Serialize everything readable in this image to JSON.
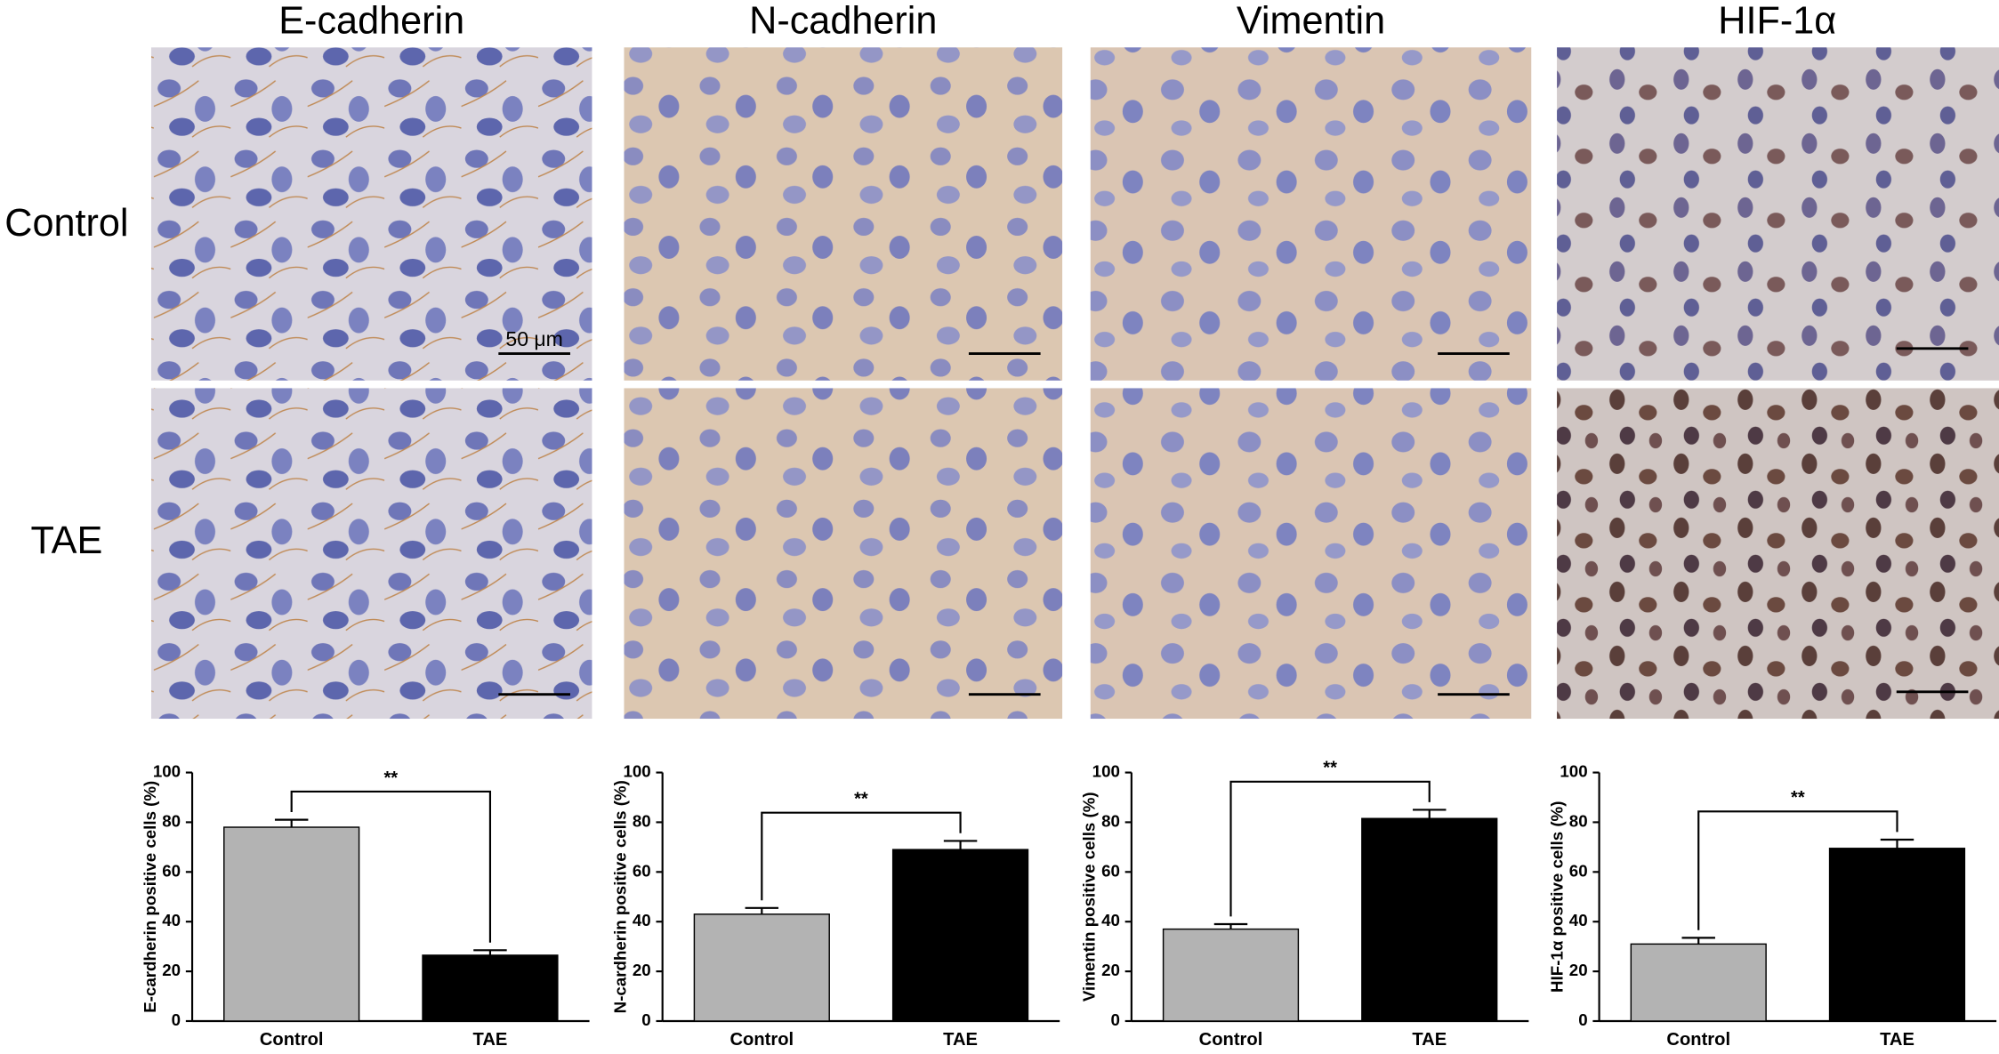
{
  "figure": {
    "columns": [
      "E-cadherin",
      "N-cadherin",
      "Vimentin",
      "HIF-1α"
    ],
    "rows": [
      "Control",
      "TAE"
    ],
    "scale_bar": "50 μm"
  },
  "chart_data": [
    {
      "type": "bar",
      "ylabel": "E-cardherin positive cells (%)",
      "categories": [
        "Control",
        "TAE"
      ],
      "values": [
        78,
        26.5
      ],
      "errors": [
        3,
        2
      ],
      "colors": [
        "#b3b3b3",
        "#000000"
      ],
      "ylim": [
        0,
        100
      ],
      "yticks": [
        0,
        20,
        40,
        60,
        80,
        100
      ],
      "annotation": "**"
    },
    {
      "type": "bar",
      "ylabel": "N-cardherin positive cells (%)",
      "categories": [
        "Control",
        "TAE"
      ],
      "values": [
        43,
        69
      ],
      "errors": [
        2.5,
        3.5
      ],
      "colors": [
        "#b3b3b3",
        "#000000"
      ],
      "ylim": [
        0,
        100
      ],
      "yticks": [
        0,
        20,
        40,
        60,
        80,
        100
      ],
      "annotation": "**"
    },
    {
      "type": "bar",
      "ylabel": "Vimentin positive cells (%)",
      "categories": [
        "Control",
        "TAE"
      ],
      "values": [
        37,
        81.5
      ],
      "errors": [
        2,
        3.5
      ],
      "colors": [
        "#b3b3b3",
        "#000000"
      ],
      "ylim": [
        0,
        100
      ],
      "yticks": [
        0,
        20,
        40,
        60,
        80,
        100
      ],
      "annotation": "**"
    },
    {
      "type": "bar",
      "ylabel": "HIF-1α positive cells (%)",
      "categories": [
        "Control",
        "TAE"
      ],
      "values": [
        31,
        69.5
      ],
      "errors": [
        2.5,
        3.5
      ],
      "colors": [
        "#b3b3b3",
        "#000000"
      ],
      "ylim": [
        0,
        100
      ],
      "yticks": [
        0,
        20,
        40,
        60,
        80,
        100
      ],
      "annotation": "**"
    }
  ]
}
